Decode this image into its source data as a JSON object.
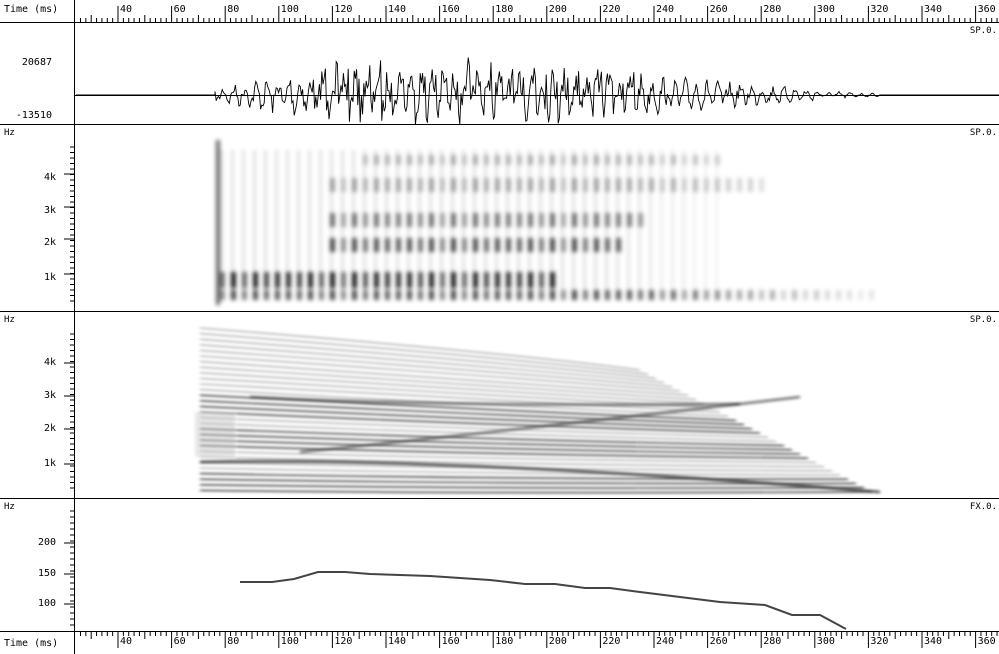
{
  "time_axis": {
    "label": "Time (ms)",
    "ticks": [
      "40",
      "60",
      "80",
      "100",
      "120",
      "140",
      "160",
      "180",
      "200",
      "220",
      "240",
      "260",
      "280",
      "300",
      "320",
      "340",
      "360"
    ]
  },
  "panels": [
    {
      "id": "waveform",
      "file_label": "SP.0.",
      "y_max": "20687",
      "y_min": "-13510"
    },
    {
      "id": "wideband-spectrogram",
      "unit": "Hz",
      "file_label": "SP.0.",
      "y_ticks": [
        "4k",
        "3k",
        "2k",
        "1k"
      ]
    },
    {
      "id": "narrowband-spectrogram",
      "unit": "Hz",
      "file_label": "SP.0.",
      "y_ticks": [
        "4k",
        "3k",
        "2k",
        "1k"
      ]
    },
    {
      "id": "pitch-track",
      "unit": "Hz",
      "file_label": "FX.0.",
      "y_ticks": [
        "200",
        "150",
        "100"
      ]
    }
  ]
}
